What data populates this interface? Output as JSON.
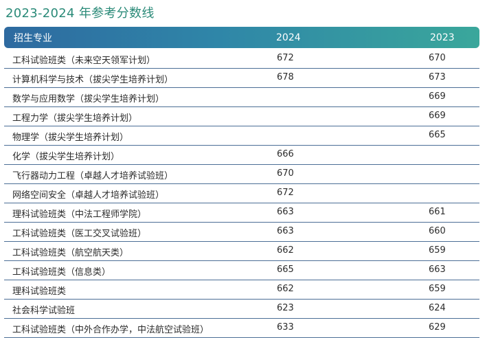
{
  "title": "2023-2024 年参考分数线",
  "table": {
    "headers": {
      "major": "招生专业",
      "y2024": "2024",
      "y2023": "2023"
    },
    "rows": [
      {
        "major": "工科试验班类（未来空天领军计划）",
        "y2024": "672",
        "y2023": "670"
      },
      {
        "major": "计算机科学与技术（拔尖学生培养计划）",
        "y2024": "678",
        "y2023": "673"
      },
      {
        "major": "数学与应用数学（拔尖学生培养计划）",
        "y2024": "",
        "y2023": "669"
      },
      {
        "major": "工程力学（拔尖学生培养计划）",
        "y2024": "",
        "y2023": "669"
      },
      {
        "major": "物理学（拔尖学生培养计划）",
        "y2024": "",
        "y2023": "665"
      },
      {
        "major": "化学（拔尖学生培养计划）",
        "y2024": "666",
        "y2023": ""
      },
      {
        "major": "飞行器动力工程（卓越人才培养试验班）",
        "y2024": "670",
        "y2023": ""
      },
      {
        "major": "网络空间安全（卓越人才培养试验班）",
        "y2024": "672",
        "y2023": ""
      },
      {
        "major": "理科试验班类（中法工程师学院）",
        "y2024": "663",
        "y2023": "661"
      },
      {
        "major": "工科试验班类（医工交叉试验班）",
        "y2024": "663",
        "y2023": "660"
      },
      {
        "major": "工科试验班类（航空航天类）",
        "y2024": "662",
        "y2023": "659"
      },
      {
        "major": "工科试验班类（信息类）",
        "y2024": "665",
        "y2023": "663"
      },
      {
        "major": "理科试验班类",
        "y2024": "662",
        "y2023": "659"
      },
      {
        "major": "社会科学试验班",
        "y2024": "623",
        "y2023": "624"
      },
      {
        "major": "工科试验班类（中外合作办学，中法航空试验班）",
        "y2024": "633",
        "y2023": "629"
      }
    ]
  }
}
